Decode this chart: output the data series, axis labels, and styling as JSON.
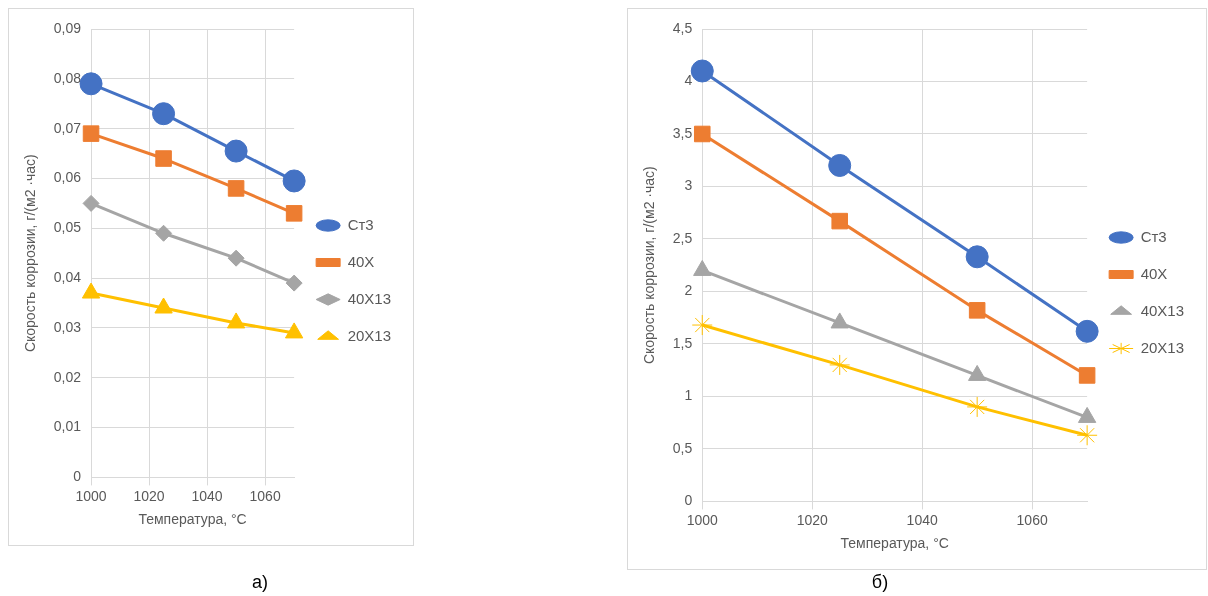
{
  "chart_data": [
    {
      "type": "line",
      "xlabel": "Температура, °С",
      "ylabel": "Скорость коррозии, г/(м2 ·час)",
      "annotations": [
        "а)"
      ],
      "legend": "right",
      "grid": true,
      "x": [
        1000,
        1025,
        1050,
        1070
      ],
      "xlim": [
        1000,
        1070
      ],
      "xticks": [
        1000,
        1020,
        1040,
        1060
      ],
      "ylim": [
        0,
        0.09
      ],
      "yticks": [
        {
          "value": 0,
          "label": "0"
        },
        {
          "value": 0.01,
          "label": "0,01"
        },
        {
          "value": 0.02,
          "label": "0,02"
        },
        {
          "value": 0.03,
          "label": "0,03"
        },
        {
          "value": 0.04,
          "label": "0,04"
        },
        {
          "value": 0.05,
          "label": "0,05"
        },
        {
          "value": 0.06,
          "label": "0,06"
        },
        {
          "value": 0.07,
          "label": "0,07"
        },
        {
          "value": 0.08,
          "label": "0,08"
        },
        {
          "value": 0.09,
          "label": "0,09"
        }
      ],
      "series": [
        {
          "name": "Ст3",
          "color": "#4472c4",
          "marker": "circle",
          "values": [
            0.079,
            0.073,
            0.0655,
            0.0595
          ]
        },
        {
          "name": "40Х",
          "color": "#ed7d31",
          "marker": "square",
          "values": [
            0.069,
            0.064,
            0.058,
            0.053
          ]
        },
        {
          "name": "40Х13",
          "color": "#a5a5a5",
          "marker": "diamond",
          "values": [
            0.055,
            0.049,
            0.044,
            0.039
          ]
        },
        {
          "name": "20Х13",
          "color": "#ffc000",
          "marker": "triangle",
          "values": [
            0.037,
            0.034,
            0.031,
            0.029
          ]
        }
      ]
    },
    {
      "type": "line",
      "xlabel": "Температура, °С",
      "ylabel": "Скорость коррозии, г/(м2 ·час)",
      "annotations": [
        "б)"
      ],
      "legend": "right",
      "grid": true,
      "x": [
        1000,
        1025,
        1050,
        1070
      ],
      "xlim": [
        1000,
        1070
      ],
      "xticks": [
        1000,
        1020,
        1040,
        1060
      ],
      "ylim": [
        0,
        4.5
      ],
      "yticks": [
        0,
        {
          "value": 0.5,
          "label": "0,5"
        },
        1,
        {
          "value": 1.5,
          "label": "1,5"
        },
        2,
        {
          "value": 2.5,
          "label": "2,5"
        },
        3,
        {
          "value": 3.5,
          "label": "3,5"
        },
        4,
        {
          "value": 4.5,
          "label": "4,5"
        }
      ],
      "series": [
        {
          "name": "Ст3",
          "color": "#4472c4",
          "marker": "circle",
          "values": [
            4.1,
            3.2,
            2.33,
            1.62
          ]
        },
        {
          "name": "40Х",
          "color": "#ed7d31",
          "marker": "square",
          "values": [
            3.5,
            2.67,
            1.82,
            1.2
          ]
        },
        {
          "name": "40Х13",
          "color": "#a5a5a5",
          "marker": "triangle",
          "values": [
            2.2,
            1.7,
            1.2,
            0.8
          ]
        },
        {
          "name": "20Х13",
          "color": "#ffc000",
          "marker": "cross",
          "values": [
            1.68,
            1.3,
            0.9,
            0.63
          ]
        }
      ]
    }
  ]
}
